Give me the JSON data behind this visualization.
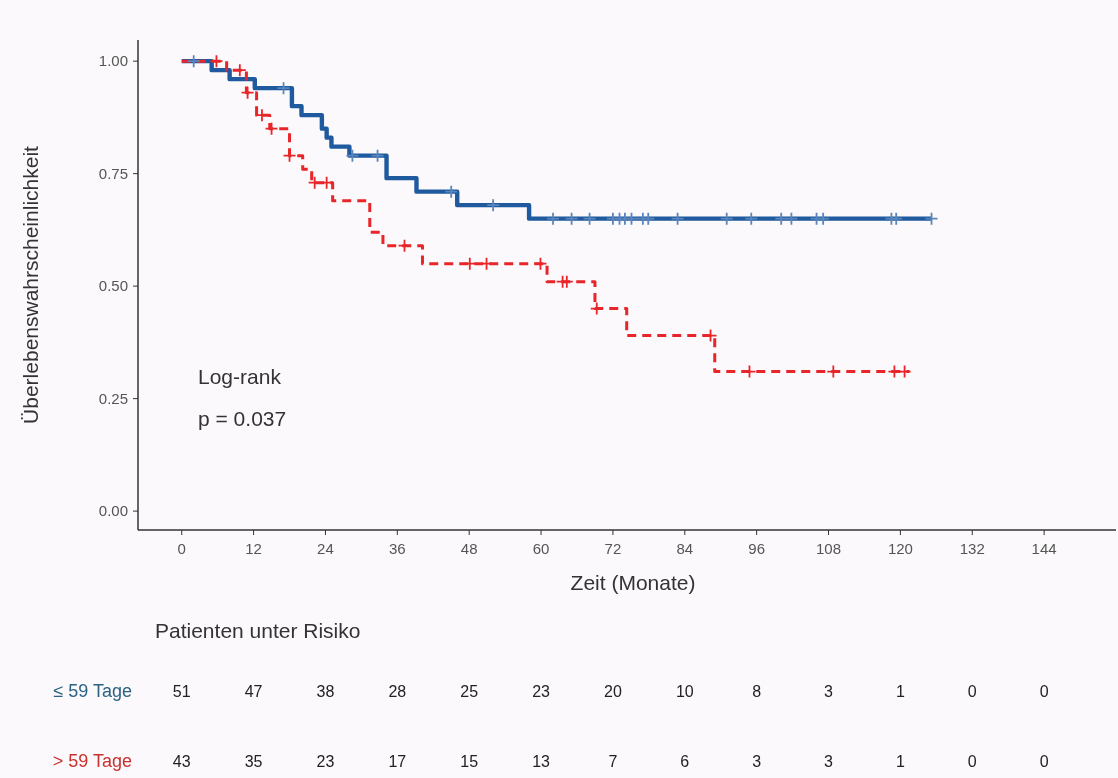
{
  "chart_data": [
    {
      "type": "step",
      "xlabel": "Zeit (Monate)",
      "ylabel": "Überlebenswahrscheinlichkeit",
      "annotations": [
        "Log-rank",
        "p = 0.037"
      ],
      "xlim": [
        -7.3,
        156
      ],
      "xticks": [
        0,
        12,
        24,
        36,
        48,
        60,
        72,
        84,
        96,
        108,
        120,
        132,
        144
      ],
      "ylim": [
        -0.042,
        1.047
      ],
      "yticks": [
        {
          "value": 0,
          "label": "0.00"
        },
        {
          "value": 0.25,
          "label": "0.25"
        },
        {
          "value": 0.5,
          "label": "0.50"
        },
        {
          "value": 0.75,
          "label": "0.75"
        },
        {
          "value": 1,
          "label": "1.00"
        }
      ],
      "grid": false,
      "series": [
        {
          "type": "step",
          "color": "#1f5a9e",
          "line_style": "solid",
          "x": [
            0,
            5,
            8,
            12.2,
            18.4,
            20,
            23.4,
            24.2,
            25,
            28,
            34.2,
            39.2,
            46,
            58,
            125.2
          ],
          "values": [
            1,
            0.98,
            0.96,
            0.94,
            0.9,
            0.88,
            0.85,
            0.83,
            0.81,
            0.79,
            0.74,
            0.71,
            0.68,
            0.65,
            0.65
          ]
        },
        {
          "type": "step",
          "color": "#e8262a",
          "line_style": "dashed",
          "x": [
            0,
            7.5,
            10.8,
            12.5,
            14.7,
            18,
            20.2,
            21.7,
            25.2,
            31.4,
            33.6,
            40.2,
            61,
            69,
            74.3,
            89,
            121.5
          ],
          "values": [
            1,
            0.98,
            0.93,
            0.88,
            0.85,
            0.79,
            0.76,
            0.73,
            0.69,
            0.62,
            0.59,
            0.55,
            0.51,
            0.45,
            0.39,
            0.31,
            0.31
          ]
        },
        {
          "type": "scatter",
          "marker": "cross",
          "color": "#5a86bd",
          "x": [
            2,
            17,
            28.5,
            32.7,
            45,
            52,
            62,
            65.1,
            68.1,
            72,
            73.1,
            74,
            75.1,
            77,
            77.9,
            82.8,
            91,
            95.1,
            100.1,
            101.8,
            106,
            107.1,
            118.5,
            119.3,
            125.2
          ],
          "values": [
            1,
            0.94,
            0.79,
            0.79,
            0.71,
            0.68,
            0.65,
            0.65,
            0.65,
            0.65,
            0.65,
            0.65,
            0.65,
            0.65,
            0.65,
            0.65,
            0.65,
            0.65,
            0.65,
            0.65,
            0.65,
            0.65,
            0.65,
            0.65,
            0.65
          ]
        },
        {
          "type": "scatter",
          "marker": "cross",
          "color": "#e8262a",
          "x": [
            5.8,
            9.7,
            11,
            13.4,
            15,
            18,
            22.2,
            24.2,
            37.2,
            48.1,
            50.9,
            59.9,
            63.6,
            64.3,
            69.3,
            88.3,
            94.8,
            108.8,
            119,
            120.7
          ],
          "values": [
            1,
            0.98,
            0.93,
            0.88,
            0.85,
            0.79,
            0.73,
            0.73,
            0.59,
            0.55,
            0.55,
            0.55,
            0.51,
            0.51,
            0.45,
            0.39,
            0.31,
            0.31,
            0.31,
            0.31
          ]
        }
      ]
    },
    {
      "type": "other",
      "title": "Patienten unter Risiko",
      "categories": [
        null,
        null,
        null,
        null,
        null,
        null,
        null,
        null,
        null,
        null,
        null,
        null,
        null
      ],
      "colors": [
        "#2b6382",
        "#c8312f"
      ],
      "annotations": [
        "≤ 59 Tage",
        "51",
        "47",
        "38",
        "28",
        "25",
        "23",
        "20",
        "10",
        "8",
        "3",
        "1",
        "0",
        "0",
        "> 59 Tage",
        "43",
        "35",
        "23",
        "17",
        "15",
        "13",
        "7",
        "6",
        "3",
        "3",
        "1",
        "0",
        "0"
      ]
    }
  ]
}
